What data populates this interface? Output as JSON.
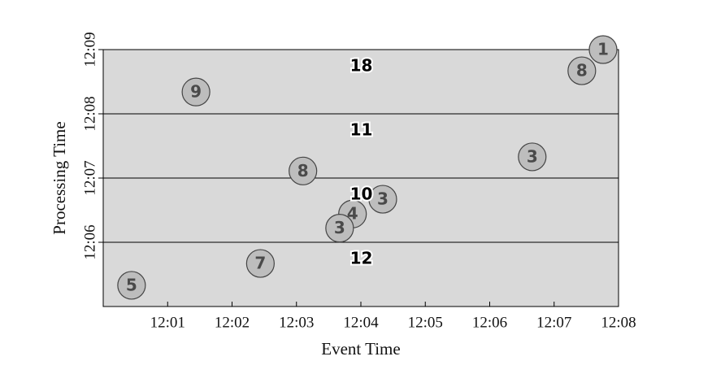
{
  "chart_data": {
    "type": "scatter",
    "xlabel": "Event Time",
    "ylabel": "Processing Time",
    "xlim": [
      0,
      8
    ],
    "xticks": [
      {
        "value": 1,
        "label": "12:01"
      },
      {
        "value": 2,
        "label": "12:02"
      },
      {
        "value": 3,
        "label": "12:03"
      },
      {
        "value": 4,
        "label": "12:04"
      },
      {
        "value": 5,
        "label": "12:05"
      },
      {
        "value": 6,
        "label": "12:06"
      },
      {
        "value": 7,
        "label": "12:07"
      },
      {
        "value": 8,
        "label": "12:08"
      }
    ],
    "ylim": [
      5,
      9
    ],
    "yticks": [
      {
        "value": 6,
        "label": "12:06"
      },
      {
        "value": 7,
        "label": "12:07"
      },
      {
        "value": 8,
        "label": "12:08"
      },
      {
        "value": 9,
        "label": "12:09"
      }
    ],
    "x": [
      7.76,
      7.43,
      1.44,
      6.66,
      3.1,
      4.34,
      3.87,
      3.67,
      2.44,
      0.44
    ],
    "y": [
      9.0,
      8.67,
      8.34,
      7.33,
      7.11,
      6.67,
      6.44,
      6.22,
      5.67,
      5.33
    ],
    "labels": [
      1,
      8,
      9,
      3,
      8,
      3,
      4,
      3,
      7,
      5
    ],
    "color": "#bdbdbd",
    "panes": [
      {
        "from": 8,
        "to": 9,
        "sum": 18
      },
      {
        "from": 7,
        "to": 8,
        "sum": 11
      },
      {
        "from": 6,
        "to": 7,
        "sum": 10
      },
      {
        "from": 5,
        "to": 6,
        "sum": 12
      }
    ],
    "grid": true
  }
}
